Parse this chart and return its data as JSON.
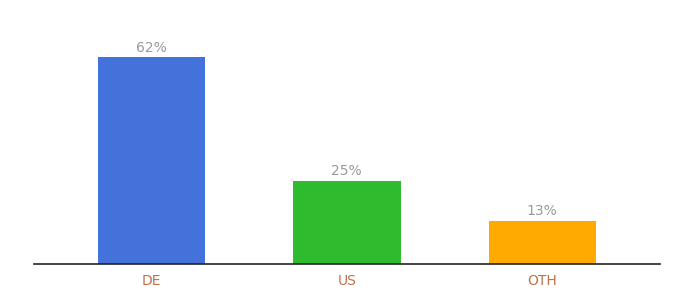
{
  "categories": [
    "DE",
    "US",
    "OTH"
  ],
  "values": [
    62,
    25,
    13
  ],
  "bar_colors": [
    "#4472db",
    "#2ebc2e",
    "#ffaa00"
  ],
  "labels": [
    "62%",
    "25%",
    "13%"
  ],
  "background_color": "#ffffff",
  "ylim": [
    0,
    72
  ],
  "bar_width": 0.55,
  "label_fontsize": 10,
  "tick_fontsize": 10,
  "tick_color": "#c0714a",
  "label_color": "#999999"
}
